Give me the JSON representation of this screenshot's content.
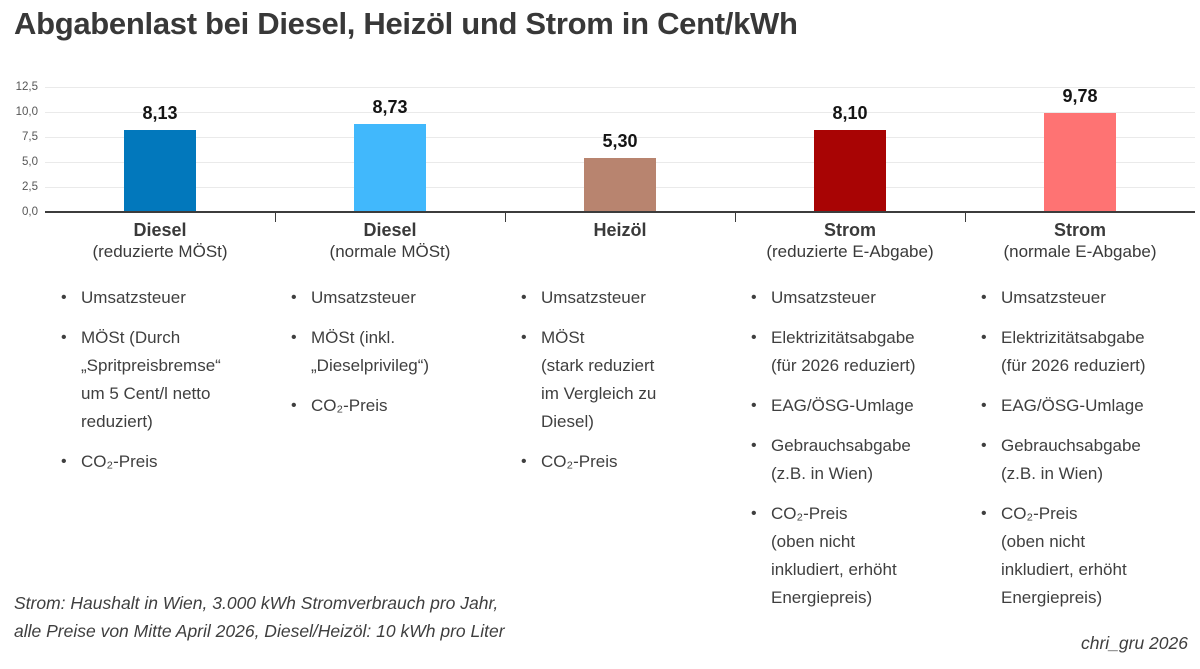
{
  "title": "Abgabenlast bei Diesel, Heizöl und Strom in Cent/kWh",
  "chart_data": {
    "type": "bar",
    "title": "Abgabenlast bei Diesel, Heizöl und Strom in Cent/kWh",
    "categories": [
      "Diesel (reduzierte MÖSt)",
      "Diesel (normale MÖSt)",
      "Heizöl",
      "Strom (reduzierte E-Abgabe)",
      "Strom (normale E-Abgabe)"
    ],
    "values": [
      8.13,
      8.73,
      5.3,
      8.1,
      9.78
    ],
    "value_labels": [
      "8,13",
      "8,73",
      "5,30",
      "8,10",
      "9,78"
    ],
    "bar_colors": [
      "#0278BC",
      "#41B8FC",
      "#B8846F",
      "#A80404",
      "#FE7373"
    ],
    "unit": "Cent/kWh",
    "ylim": [
      0,
      12.5
    ],
    "ytick_labels": [
      "0,0",
      "2,5",
      "5,0",
      "7,5",
      "10,0",
      "12,5"
    ],
    "grid": true,
    "legend": "none"
  },
  "columns": [
    {
      "name": "Diesel",
      "subtitle": "(reduzierte MÖSt)",
      "bullets": [
        "Umsatzsteuer",
        "MÖSt (Durch\n„Spritpreisbremse“\num 5 Cent/l netto\nreduziert)",
        "CO₂-Preis"
      ]
    },
    {
      "name": "Diesel",
      "subtitle": "(normale MÖSt)",
      "bullets": [
        "Umsatzsteuer",
        "MÖSt (inkl.\n„Dieselprivileg“)",
        "CO₂-Preis"
      ]
    },
    {
      "name": "Heizöl",
      "subtitle": "",
      "bullets": [
        "Umsatzsteuer",
        "MÖSt\n(stark reduziert\nim Vergleich zu\nDiesel)",
        "CO₂-Preis"
      ]
    },
    {
      "name": "Strom",
      "subtitle": "(reduzierte E-Abgabe)",
      "bullets": [
        "Umsatzsteuer",
        "Elektrizitätsabgabe\n(für 2026 reduziert)",
        "EAG/ÖSG-Umlage",
        "Gebrauchsabgabe\n(z.B. in Wien)",
        "CO₂-Preis\n(oben nicht\ninkludiert, erhöht\nEnergiepreis)"
      ]
    },
    {
      "name": "Strom",
      "subtitle": "(normale E-Abgabe)",
      "bullets": [
        "Umsatzsteuer",
        "Elektrizitätsabgabe\n(für 2026 reduziert)",
        "EAG/ÖSG-Umlage",
        "Gebrauchsabgabe\n(z.B. in Wien)",
        "CO₂-Preis\n(oben nicht\ninkludiert, erhöht\nEnergiepreis)"
      ]
    }
  ],
  "footnote": [
    "Strom: Haushalt in Wien, 3.000 kWh Stromverbrauch pro Jahr,",
    "alle Preise von Mitte April 2026, Diesel/Heizöl: 10 kWh pro Liter"
  ],
  "credit": "chri_gru 2026"
}
